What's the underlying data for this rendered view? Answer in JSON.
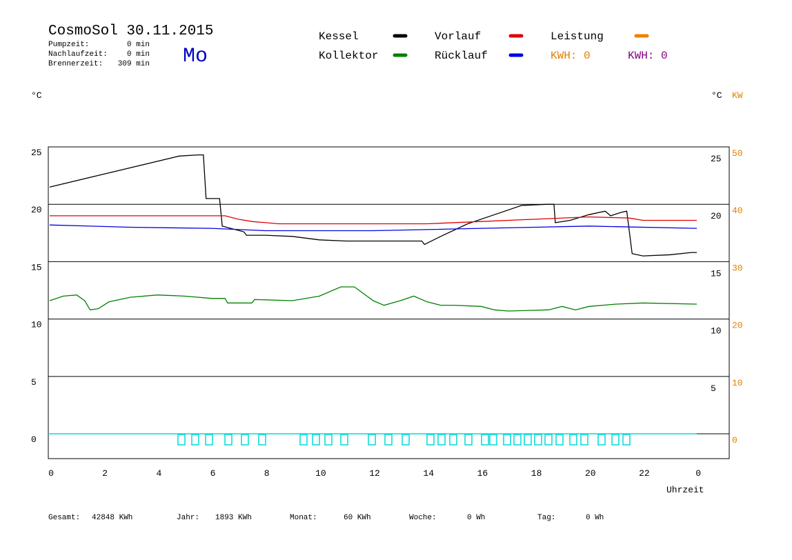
{
  "header": {
    "title": "CosmoSol 30.11.2015",
    "day": "Mo",
    "info": [
      {
        "label": "Pumpzeit:",
        "value": "0 min"
      },
      {
        "label": "Nachlaufzeit:",
        "value": "0 min"
      },
      {
        "label": "Brennerzeit:",
        "value": "309 min"
      }
    ],
    "kwh": [
      {
        "text": "KWH: 0",
        "color": "#e08000"
      },
      {
        "text": "KWH: 0",
        "color": "#800080"
      }
    ]
  },
  "chart_data": {
    "type": "line",
    "y_unit": "°C",
    "y2_unit_left": "°C",
    "y2_unit": "KW",
    "xlabel": "Uhrzeit",
    "xlim": [
      0,
      25.2
    ],
    "xticks": [
      0,
      2,
      4,
      6,
      8,
      10,
      12,
      14,
      16,
      18,
      20,
      22,
      {
        "value": 24,
        "label": "0"
      }
    ],
    "ylim": [
      -2.16,
      25
    ],
    "yticks": [
      0,
      5,
      10,
      15,
      20,
      25
    ],
    "y_right_ticks": [
      5,
      10,
      15,
      20,
      25
    ],
    "y2lim": [
      -4.32,
      50
    ],
    "y2ticks": [
      0,
      10,
      20,
      30,
      40,
      50
    ],
    "y2_color": "#e08000",
    "grid": true,
    "series": [
      {
        "name": "Kessel",
        "color": "#000000",
        "x": [
          0,
          4.8,
          5.5,
          5.7,
          5.8,
          6.3,
          6.4,
          7.2,
          7.3,
          8,
          9,
          10,
          11,
          13.8,
          13.9,
          14.5,
          15.5,
          16.5,
          17.5,
          18.5,
          18.7,
          18.75,
          19.3,
          20,
          20.6,
          20.8,
          21.2,
          21.4,
          21.6,
          22,
          23,
          23.8,
          24
        ],
        "values": [
          21.5,
          24.2,
          24.3,
          24.3,
          20.5,
          20.5,
          18.1,
          17.6,
          17.3,
          17.3,
          17.2,
          16.9,
          16.8,
          16.8,
          16.5,
          17.2,
          18.3,
          19.1,
          19.9,
          20.0,
          20.0,
          18.4,
          18.6,
          19.1,
          19.4,
          19.0,
          19.3,
          19.4,
          15.7,
          15.5,
          15.6,
          15.8,
          15.8
        ]
      },
      {
        "name": "Vorlauf",
        "color": "#e00000",
        "x": [
          0,
          6.5,
          7,
          7.5,
          8.5,
          14,
          16,
          18,
          20,
          21.5,
          22,
          24
        ],
        "values": [
          19.0,
          19.0,
          18.7,
          18.5,
          18.3,
          18.3,
          18.5,
          18.7,
          18.9,
          18.8,
          18.6,
          18.6
        ]
      },
      {
        "name": "Leistung",
        "color": "#f08000",
        "x": [],
        "values": []
      },
      {
        "name": "Kollektor",
        "color": "#008000",
        "x": [
          0,
          0.5,
          1,
          1.3,
          1.5,
          1.8,
          2.2,
          3,
          4,
          5,
          6,
          6.5,
          6.6,
          7.5,
          7.6,
          9,
          10,
          10.8,
          11.3,
          12,
          12.4,
          13,
          13.5,
          14,
          14.5,
          15,
          16,
          16.5,
          17,
          18.5,
          19,
          19.5,
          20,
          21,
          22,
          24
        ],
        "values": [
          11.6,
          12.0,
          12.1,
          11.6,
          10.8,
          10.9,
          11.5,
          11.9,
          12.1,
          12.0,
          11.8,
          11.8,
          11.4,
          11.4,
          11.7,
          11.6,
          12.0,
          12.8,
          12.8,
          11.6,
          11.2,
          11.6,
          12.0,
          11.5,
          11.2,
          11.2,
          11.1,
          10.8,
          10.7,
          10.8,
          11.1,
          10.8,
          11.1,
          11.3,
          11.4,
          11.3
        ]
      },
      {
        "name": "Rücklauf",
        "color": "#0000e0",
        "x": [
          0,
          3,
          6,
          8,
          12,
          16,
          18,
          20,
          24
        ],
        "values": [
          18.2,
          18.0,
          17.9,
          17.7,
          17.7,
          17.9,
          18.0,
          18.1,
          17.9
        ]
      }
    ]
  },
  "footer": [
    {
      "label": "Gesamt:",
      "value": "42848 KWh"
    },
    {
      "label": "Jahr:",
      "value": "1893 KWh"
    },
    {
      "label": "Monat:",
      "value": "60 KWh"
    },
    {
      "label": "Woche:",
      "value": "0 Wh"
    },
    {
      "label": "Tag:",
      "value": "0 Wh"
    }
  ]
}
